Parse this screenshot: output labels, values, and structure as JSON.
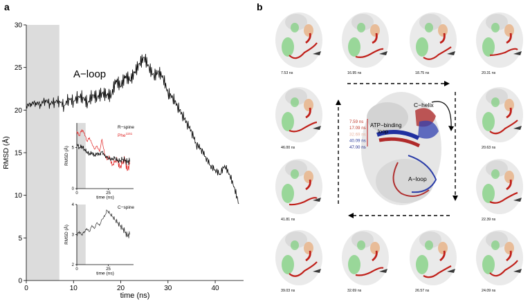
{
  "panel_a": {
    "letter": "a",
    "annotation": "A−loop"
  },
  "panel_b": {
    "letter": "b",
    "center": {
      "label_c_helix": "C−helix",
      "label_atp_loop_1": "ATP−binding",
      "label_atp_loop_2": "loop",
      "label_a_loop": "A−loop",
      "legend": [
        {
          "text": "7.59 ns",
          "color": "#c0392b"
        },
        {
          "text": "17.09 ns",
          "color": "#c0392b"
        },
        {
          "text": "32.69 ns",
          "color": "#e8b4a0"
        },
        {
          "text": "40.09 ns",
          "color": "#2c3e9e"
        },
        {
          "text": "47.00 ns",
          "color": "#1f2a8a"
        }
      ]
    },
    "snapshots": [
      "7.53 ns",
      "16.95 ns",
      "18.75 ns",
      "20.31 ns",
      "46.00 ns",
      "20.63 ns",
      "41.81 ns",
      "22.39 ns",
      "39.03 ns",
      "32.69 ns",
      "26.57 ns",
      "24.09 ns"
    ],
    "colors": {
      "green": "#7ed07e",
      "tan": "#e8b48a",
      "red": "#c0201a",
      "dark": "#3a3a3a",
      "grey": "#d9d9d9"
    }
  },
  "chart_data": [
    {
      "type": "line",
      "ylabel": "RMSD (Å)",
      "xlabel": "time (ns)",
      "xlim": [
        0,
        46
      ],
      "ylim": [
        0,
        30
      ],
      "xticks": [
        0,
        10,
        20,
        30,
        40
      ],
      "yticks": [
        0,
        5,
        10,
        15,
        20,
        25,
        30
      ],
      "shaded_region": [
        0,
        7
      ],
      "series": [
        {
          "color": "#000000",
          "x": [
            0,
            1,
            2,
            3,
            4,
            5,
            6,
            7,
            8,
            9,
            10,
            11,
            12,
            13,
            14,
            15,
            16,
            17,
            18,
            19,
            20,
            21,
            22,
            23,
            24,
            25,
            26,
            27,
            28,
            29,
            30,
            31,
            32,
            33,
            34,
            35,
            36,
            37,
            38,
            39,
            40,
            41,
            42,
            43,
            44,
            45
          ],
          "y": [
            20.5,
            20.8,
            20.9,
            20.7,
            21.2,
            20.8,
            21.0,
            21.1,
            20.5,
            21.4,
            21.0,
            21.6,
            21.5,
            20.8,
            21.8,
            21.5,
            22.0,
            21.8,
            21.7,
            23.5,
            22.8,
            24.0,
            23.5,
            24.5,
            25.5,
            26.2,
            25.0,
            24.0,
            24.5,
            23.8,
            22.0,
            21.5,
            20.5,
            19.5,
            18.5,
            17.5,
            16.0,
            15.5,
            14.5,
            13.5,
            13.0,
            12.5,
            13.5,
            12.5,
            11.0,
            9.0
          ]
        }
      ]
    },
    {
      "type": "line",
      "title": "",
      "ylabel": "RMSD (Å)",
      "xlabel": "time (ns)",
      "xlim": [
        0,
        45
      ],
      "ylim": [
        0,
        8
      ],
      "xticks": [
        0,
        25
      ],
      "yticks": [
        0,
        5
      ],
      "shaded_region": [
        0,
        7
      ],
      "legend_entries": [
        {
          "text": "R−spine",
          "color": "#000000"
        },
        {
          "text": "Phe",
          "sup": "1151",
          "color": "#e02020"
        }
      ],
      "series": [
        {
          "color": "#e02020",
          "x": [
            0,
            2,
            4,
            6,
            8,
            10,
            12,
            14,
            16,
            18,
            20,
            22,
            24,
            26,
            28,
            30,
            32,
            34,
            36,
            38,
            40,
            42
          ],
          "y": [
            7.0,
            6.5,
            7.2,
            6.8,
            5.8,
            6.2,
            5.5,
            4.8,
            5.2,
            4.5,
            6.0,
            4.2,
            3.5,
            3.8,
            2.8,
            3.2,
            3.5,
            2.5,
            3.0,
            3.6,
            2.2,
            3.0
          ]
        },
        {
          "color": "#000000",
          "x": [
            0,
            2,
            4,
            6,
            8,
            10,
            12,
            14,
            16,
            18,
            20,
            22,
            24,
            26,
            28,
            30,
            32,
            34,
            36,
            38,
            40,
            42
          ],
          "y": [
            5.5,
            5.0,
            5.2,
            4.8,
            4.5,
            4.2,
            4.4,
            4.0,
            4.3,
            4.1,
            4.5,
            4.0,
            3.8,
            3.6,
            3.5,
            3.7,
            3.4,
            3.3,
            3.5,
            3.4,
            3.2,
            3.3
          ]
        }
      ]
    },
    {
      "type": "line",
      "ylabel": "RMSD (Å)",
      "xlabel": "time (ns)",
      "xlim": [
        0,
        45
      ],
      "ylim": [
        2,
        4
      ],
      "xticks": [
        0,
        25
      ],
      "yticks": [
        2,
        3,
        4
      ],
      "shaded_region": [
        0,
        7
      ],
      "legend_entries": [
        {
          "text": "C−spine",
          "color": "#000000"
        }
      ],
      "series": [
        {
          "color": "#333333",
          "x": [
            0,
            2,
            4,
            6,
            8,
            10,
            12,
            14,
            16,
            18,
            20,
            22,
            24,
            26,
            28,
            30,
            32,
            34,
            36,
            38,
            40,
            42
          ],
          "y": [
            3.0,
            3.1,
            3.0,
            3.1,
            3.2,
            3.1,
            3.3,
            3.2,
            3.4,
            3.3,
            3.5,
            3.6,
            3.8,
            3.7,
            3.6,
            3.5,
            3.4,
            3.3,
            3.2,
            3.1,
            2.95,
            3.0
          ]
        }
      ]
    }
  ]
}
